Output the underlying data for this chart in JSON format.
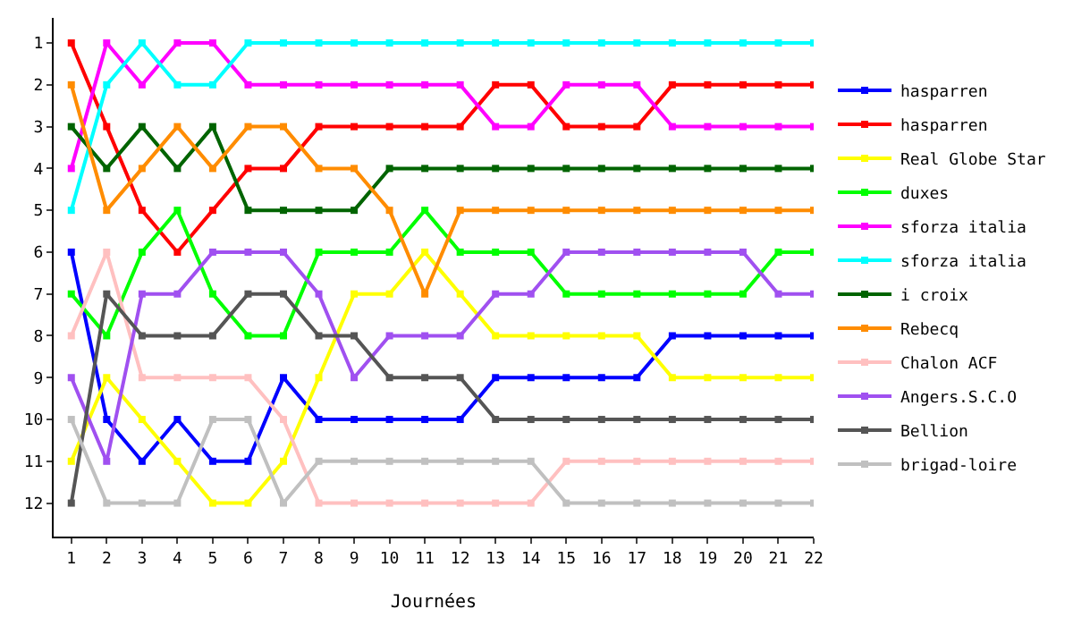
{
  "chart_data": {
    "type": "line",
    "xlabel": "Journées",
    "x": [
      1,
      2,
      3,
      4,
      5,
      6,
      7,
      8,
      9,
      10,
      11,
      12,
      13,
      14,
      15,
      16,
      17,
      18,
      19,
      20,
      21,
      22
    ],
    "xlim": [
      0.5,
      22
    ],
    "xticks": [
      1,
      2,
      3,
      4,
      5,
      6,
      7,
      8,
      9,
      10,
      11,
      12,
      13,
      14,
      15,
      16,
      17,
      18,
      19,
      20,
      21,
      22
    ],
    "ylim": [
      12.8,
      0.4
    ],
    "yticks": [
      1,
      2,
      3,
      4,
      5,
      6,
      7,
      8,
      9,
      10,
      11,
      12
    ],
    "legend": "right",
    "marker": "square",
    "line_style": "solid",
    "series": [
      {
        "name": "hasparren",
        "color": "#0000ff",
        "values": [
          6,
          10,
          11,
          10,
          11,
          11,
          9,
          10,
          10,
          10,
          10,
          10,
          9,
          9,
          9,
          9,
          9,
          8,
          8,
          8,
          8,
          8
        ]
      },
      {
        "name": "hasparren",
        "color": "#ff0000",
        "values": [
          1,
          3,
          5,
          6,
          5,
          4,
          4,
          3,
          3,
          3,
          3,
          3,
          2,
          2,
          3,
          3,
          3,
          2,
          2,
          2,
          2,
          2
        ]
      },
      {
        "name": "Real Globe Star",
        "color": "#ffff00",
        "values": [
          11,
          9,
          10,
          11,
          12,
          12,
          11,
          9,
          7,
          7,
          6,
          7,
          8,
          8,
          8,
          8,
          8,
          9,
          9,
          9,
          9,
          9
        ]
      },
      {
        "name": "duxes",
        "color": "#00ff00",
        "values": [
          7,
          8,
          6,
          5,
          7,
          8,
          8,
          6,
          6,
          6,
          5,
          6,
          6,
          6,
          7,
          7,
          7,
          7,
          7,
          7,
          6,
          6
        ]
      },
      {
        "name": "sforza italia",
        "color": "#ff00ff",
        "values": [
          4,
          1,
          2,
          1,
          1,
          2,
          2,
          2,
          2,
          2,
          2,
          2,
          3,
          3,
          2,
          2,
          2,
          3,
          3,
          3,
          3,
          3
        ]
      },
      {
        "name": "sforza italia",
        "color": "#00ffff",
        "values": [
          5,
          2,
          1,
          2,
          2,
          1,
          1,
          1,
          1,
          1,
          1,
          1,
          1,
          1,
          1,
          1,
          1,
          1,
          1,
          1,
          1,
          1
        ]
      },
      {
        "name": "i croix",
        "color": "#006400",
        "values": [
          3,
          4,
          3,
          4,
          3,
          5,
          5,
          5,
          5,
          4,
          4,
          4,
          4,
          4,
          4,
          4,
          4,
          4,
          4,
          4,
          4,
          4
        ]
      },
      {
        "name": "Rebecq",
        "color": "#ff8c00",
        "values": [
          2,
          5,
          4,
          3,
          4,
          3,
          3,
          4,
          4,
          5,
          7,
          5,
          5,
          5,
          5,
          5,
          5,
          5,
          5,
          5,
          5,
          5
        ]
      },
      {
        "name": "Chalon ACF",
        "color": "#ffc0c0",
        "values": [
          8,
          6,
          9,
          9,
          9,
          9,
          10,
          12,
          12,
          12,
          12,
          12,
          12,
          12,
          11,
          11,
          11,
          11,
          11,
          11,
          11,
          11
        ]
      },
      {
        "name": "Angers.S.C.O",
        "color": "#a050f0",
        "values": [
          9,
          11,
          7,
          7,
          6,
          6,
          6,
          7,
          9,
          8,
          8,
          8,
          7,
          7,
          6,
          6,
          6,
          6,
          6,
          6,
          7,
          7
        ]
      },
      {
        "name": "Bellion",
        "color": "#555555",
        "values": [
          12,
          7,
          8,
          8,
          8,
          7,
          7,
          8,
          8,
          9,
          9,
          9,
          10,
          10,
          10,
          10,
          10,
          10,
          10,
          10,
          10,
          10
        ]
      },
      {
        "name": "brigad-loire",
        "color": "#c0c0c0",
        "values": [
          10,
          12,
          12,
          12,
          10,
          10,
          12,
          11,
          11,
          11,
          11,
          11,
          11,
          11,
          12,
          12,
          12,
          12,
          12,
          12,
          12,
          12
        ]
      }
    ]
  }
}
